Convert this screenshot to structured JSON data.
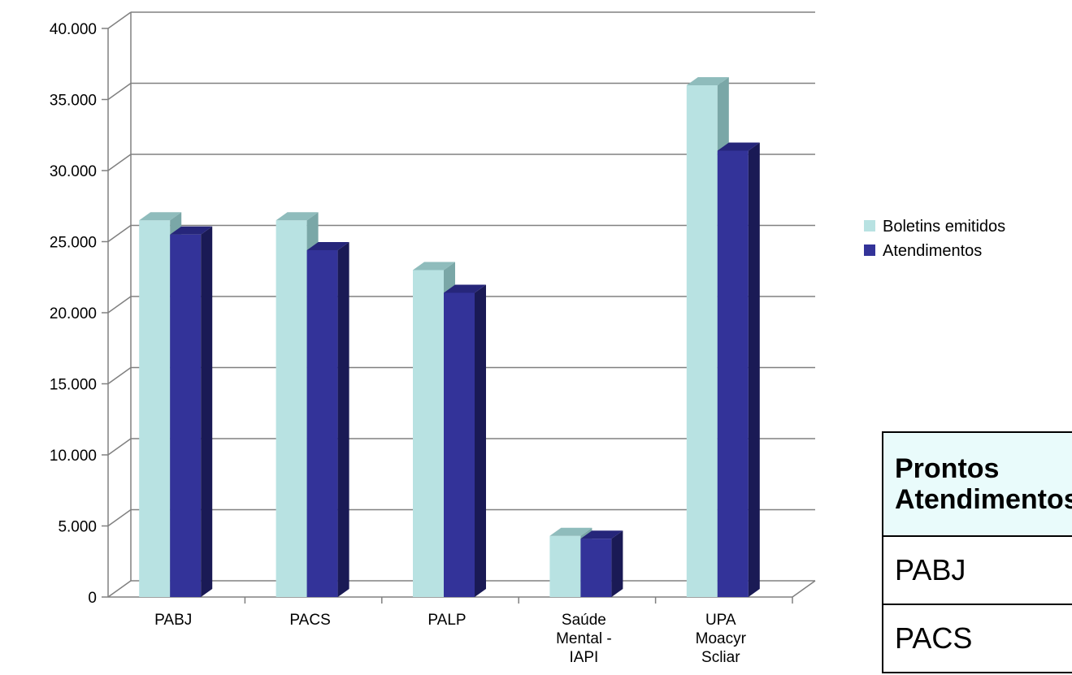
{
  "chart_data": {
    "type": "bar",
    "categories": [
      "PABJ",
      "PACS",
      "PALP",
      "Saúde Mental - IAPI",
      "UPA Moacyr Scliar"
    ],
    "category_lines": [
      [
        "PABJ"
      ],
      [
        "PACS"
      ],
      [
        "PALP"
      ],
      [
        "Saúde",
        "Mental -",
        "IAPI"
      ],
      [
        "UPA",
        "Moacyr",
        "Scliar"
      ]
    ],
    "series": [
      {
        "name": "Boletins emitidos",
        "values": [
          26500,
          26500,
          23000,
          4300,
          36000
        ],
        "color": "#b8e2e2",
        "side": "#7aa7a7",
        "top": "#8fbcbc"
      },
      {
        "name": "Atendimentos",
        "values": [
          25500,
          24400,
          21400,
          4100,
          31400
        ],
        "color": "#333399",
        "side": "#1a1a55",
        "top": "#26267a"
      }
    ],
    "ylim": [
      0,
      40000
    ],
    "yticks": [
      0,
      5000,
      10000,
      15000,
      20000,
      25000,
      30000,
      35000,
      40000
    ],
    "ytick_labels": [
      "0",
      "5.000",
      "10.000",
      "15.000",
      "20.000",
      "25.000",
      "30.000",
      "35.000",
      "40.000"
    ],
    "grid": true,
    "legend_position": "right",
    "title": "",
    "xlabel": "",
    "ylabel": ""
  },
  "table": {
    "header_line1": "Prontos",
    "header_line2": "Atendimentos",
    "rows": [
      "PABJ",
      "PACS"
    ]
  }
}
